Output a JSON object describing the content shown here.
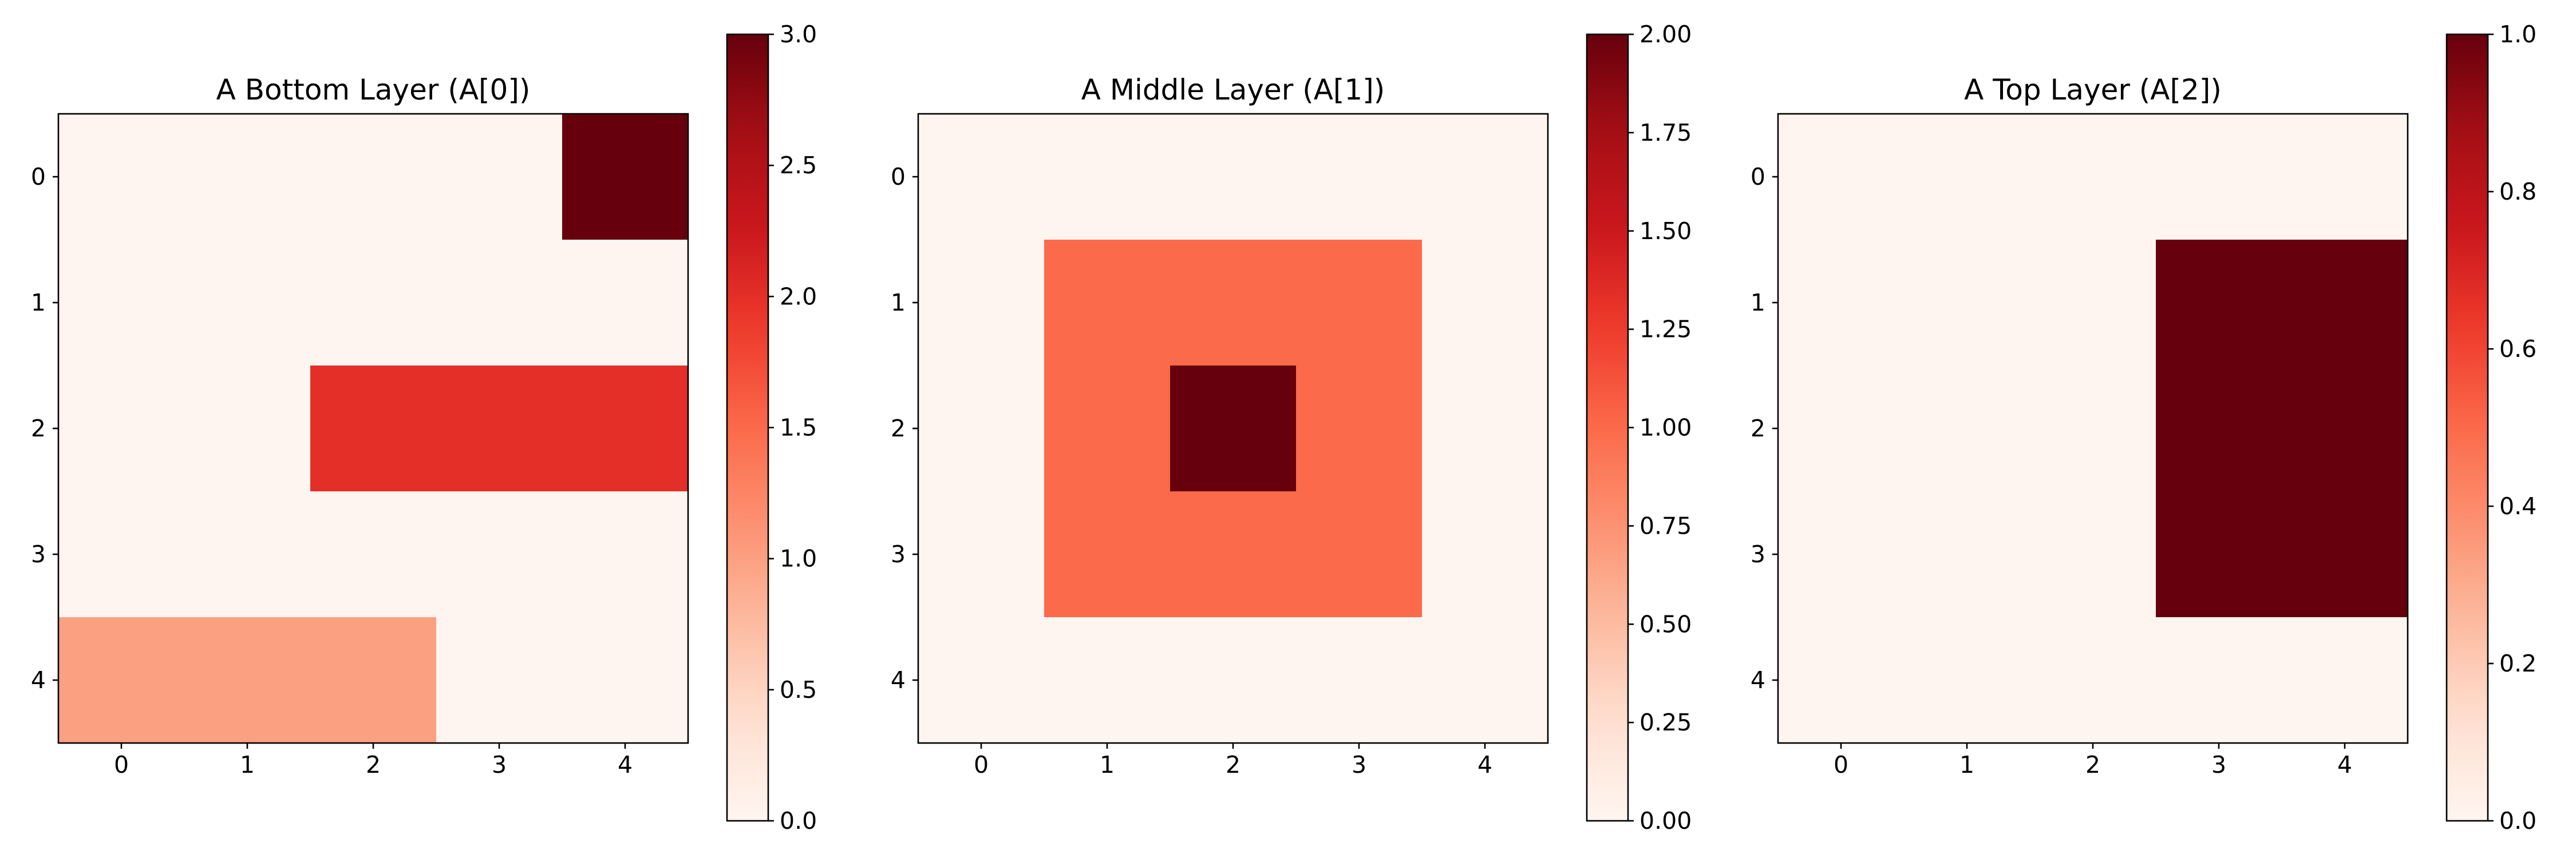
{
  "chart_data": [
    {
      "type": "heatmap",
      "title": "A Bottom Layer (A[0])",
      "colormap": "Reds",
      "x_ticks": [
        "0",
        "1",
        "2",
        "3",
        "4"
      ],
      "y_ticks": [
        "0",
        "1",
        "2",
        "3",
        "4"
      ],
      "values": [
        [
          0,
          0,
          0,
          0,
          3
        ],
        [
          0,
          0,
          0,
          0,
          0
        ],
        [
          0,
          0,
          2,
          2,
          2
        ],
        [
          0,
          0,
          0,
          0,
          0
        ],
        [
          1,
          1,
          1,
          0,
          0
        ]
      ],
      "colorbar": {
        "vmin": 0,
        "vmax": 3,
        "ticks": [
          0,
          0.5,
          1,
          1.5,
          2,
          2.5,
          3
        ],
        "tick_labels": [
          "0.0",
          "0.5",
          "1.0",
          "1.5",
          "2.0",
          "2.5",
          "3.0"
        ]
      }
    },
    {
      "type": "heatmap",
      "title": "A Middle Layer (A[1])",
      "colormap": "Reds",
      "x_ticks": [
        "0",
        "1",
        "2",
        "3",
        "4"
      ],
      "y_ticks": [
        "0",
        "1",
        "2",
        "3",
        "4"
      ],
      "values": [
        [
          0,
          0,
          0,
          0,
          0
        ],
        [
          0,
          1,
          1,
          1,
          0
        ],
        [
          0,
          1,
          2,
          1,
          0
        ],
        [
          0,
          1,
          1,
          1,
          0
        ],
        [
          0,
          0,
          0,
          0,
          0
        ]
      ],
      "colorbar": {
        "vmin": 0,
        "vmax": 2,
        "ticks": [
          0,
          0.25,
          0.5,
          0.75,
          1,
          1.25,
          1.5,
          1.75,
          2
        ],
        "tick_labels": [
          "0.00",
          "0.25",
          "0.50",
          "0.75",
          "1.00",
          "1.25",
          "1.50",
          "1.75",
          "2.00"
        ]
      }
    },
    {
      "type": "heatmap",
      "title": "A Top Layer (A[2])",
      "colormap": "Reds",
      "x_ticks": [
        "0",
        "1",
        "2",
        "3",
        "4"
      ],
      "y_ticks": [
        "0",
        "1",
        "2",
        "3",
        "4"
      ],
      "values": [
        [
          0,
          0,
          0,
          0,
          0
        ],
        [
          0,
          0,
          0,
          1,
          1
        ],
        [
          0,
          0,
          0,
          1,
          1
        ],
        [
          0,
          0,
          0,
          1,
          1
        ],
        [
          0,
          0,
          0,
          0,
          0
        ]
      ],
      "colorbar": {
        "vmin": 0,
        "vmax": 1,
        "ticks": [
          0,
          0.2,
          0.4,
          0.6,
          0.8,
          1
        ],
        "tick_labels": [
          "0.0",
          "0.2",
          "0.4",
          "0.6",
          "0.8",
          "1.0"
        ]
      }
    }
  ]
}
